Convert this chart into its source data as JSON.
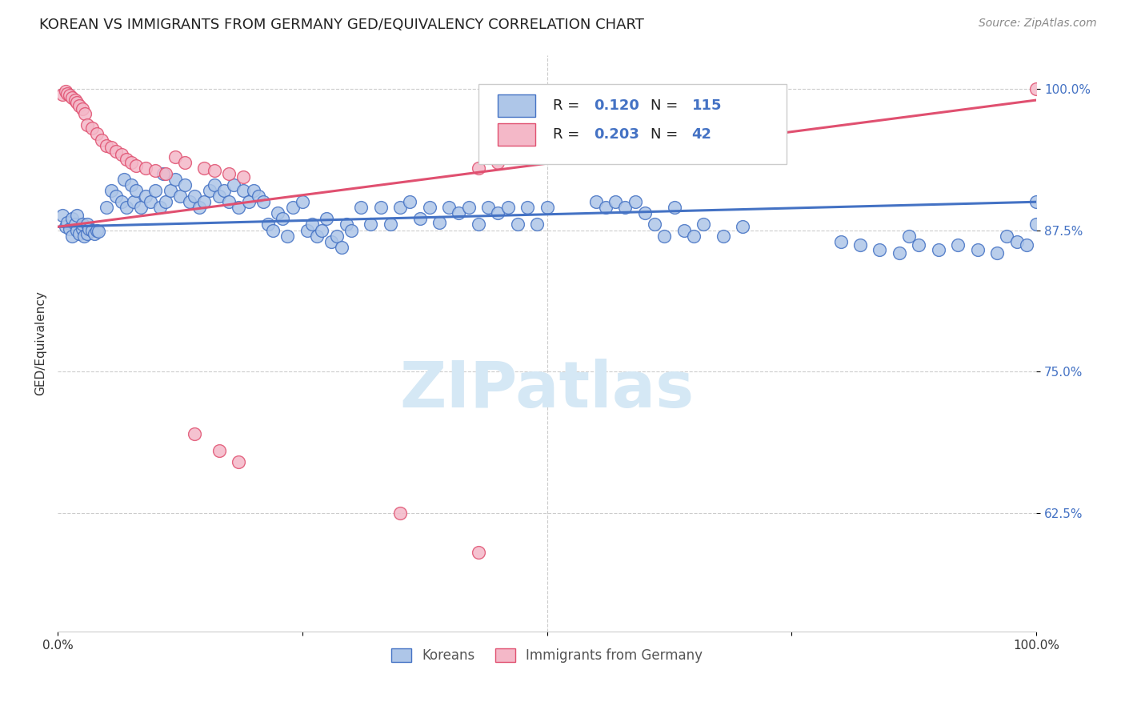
{
  "title": "KOREAN VS IMMIGRANTS FROM GERMANY GED/EQUIVALENCY CORRELATION CHART",
  "source": "Source: ZipAtlas.com",
  "ylabel": "GED/Equivalency",
  "xlim": [
    0.0,
    1.0
  ],
  "ylim": [
    0.52,
    1.03
  ],
  "yticks": [
    0.625,
    0.75,
    0.875,
    1.0
  ],
  "ytick_labels": [
    "62.5%",
    "75.0%",
    "87.5%",
    "100.0%"
  ],
  "xticks": [
    0.0,
    0.25,
    0.5,
    0.75,
    1.0
  ],
  "xtick_labels": [
    "0.0%",
    "",
    "",
    "",
    "100.0%"
  ],
  "korean_R": 0.12,
  "korean_N": 115,
  "germany_R": 0.203,
  "germany_N": 42,
  "korean_color": "#aec6e8",
  "korean_edge_color": "#4472c4",
  "germany_color": "#f4b8c8",
  "germany_edge_color": "#e05070",
  "korean_line_color": "#4472c4",
  "germany_line_color": "#e05070",
  "axis_color": "#4472c4",
  "background_color": "#ffffff",
  "grid_color": "#cccccc",
  "watermark_color": "#d5e8f5",
  "title_color": "#222222",
  "source_color": "#888888",
  "korean_line_start_y": 0.878,
  "korean_line_end_y": 0.9,
  "germany_line_start_y": 0.878,
  "germany_line_end_y": 0.99
}
